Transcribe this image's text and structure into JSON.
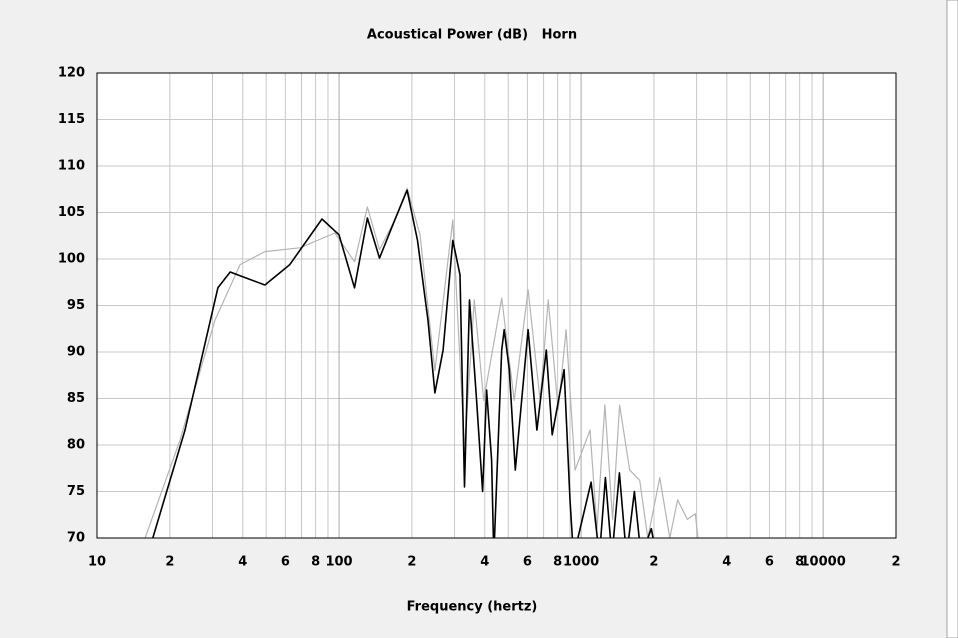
{
  "chart_data": {
    "type": "line",
    "title": "Acoustical Power (dB)   Horn",
    "xlabel": "Frequency (hertz)",
    "log_x": true,
    "grid": true,
    "xlim": [
      10,
      20000
    ],
    "ylim": [
      70,
      120
    ],
    "yticks": [
      70,
      75,
      80,
      85,
      90,
      95,
      100,
      105,
      110,
      115,
      120
    ],
    "xticks": [
      10,
      {
        "value": 20,
        "label": "2"
      },
      {
        "value": 40,
        "label": "4"
      },
      {
        "value": 60,
        "label": "6"
      },
      {
        "value": 80,
        "label": "8"
      },
      100,
      {
        "value": 200,
        "label": "2"
      },
      {
        "value": 400,
        "label": "4"
      },
      {
        "value": 600,
        "label": "6"
      },
      {
        "value": 800,
        "label": "8"
      },
      1000,
      {
        "value": 2000,
        "label": "2"
      },
      {
        "value": 4000,
        "label": "4"
      },
      {
        "value": 6000,
        "label": "6"
      },
      {
        "value": 8000,
        "label": "8"
      },
      10000,
      {
        "value": 20000,
        "label": "2"
      }
    ],
    "xminor_ticks": [
      30,
      50,
      70,
      90,
      300,
      500,
      700,
      900,
      3000,
      5000,
      7000,
      9000
    ],
    "series": [
      {
        "color": "#b4b4b4",
        "x": [
          15.8,
          22,
          30.7,
          39,
          49.4,
          69,
          96,
          116,
          131,
          147,
          170,
          191,
          216,
          249,
          295,
          330,
          362,
          396,
          470,
          529,
          604,
          677,
          731,
          804,
          867,
          945,
          1088,
          1163,
          1254,
          1350,
          1443,
          1588,
          1746,
          1886,
          2115,
          2326,
          2504,
          2750,
          2965,
          3100
        ],
        "values": [
          70,
          80.5,
          93.4,
          99.4,
          100.8,
          101.2,
          102.8,
          99.7,
          105.6,
          101,
          104.2,
          107.6,
          102.6,
          88,
          104.2,
          79.5,
          95.6,
          84.8,
          95.8,
          84.8,
          96.7,
          84.8,
          95.6,
          83.8,
          92.4,
          77.3,
          81.6,
          71,
          84.3,
          72,
          84.3,
          77.3,
          76.2,
          70,
          76.5,
          70,
          74.1,
          72,
          72.6,
          68
        ]
      },
      {
        "color": "#000000",
        "x": [
          17,
          23.1,
          31.6,
          35.5,
          40.9,
          49.4,
          62.6,
          85,
          100,
          115.8,
          131,
          147,
          170,
          191,
          211,
          233,
          249,
          269,
          295,
          316,
          330,
          346,
          370,
          392,
          407,
          427,
          436,
          470,
          481,
          505,
          535,
          604,
          657,
          718,
          760,
          851,
          900,
          930,
          1100,
          1190,
          1260,
          1340,
          1440,
          1540,
          1660,
          1770,
          1950,
          2050,
          2300
        ],
        "values": [
          70,
          81.6,
          96.9,
          98.6,
          98,
          97.2,
          99.4,
          104.3,
          102.6,
          96.9,
          104.4,
          100.1,
          104.2,
          107.4,
          102,
          93.4,
          85.6,
          90.2,
          102,
          98.3,
          75.5,
          95.6,
          84.8,
          75,
          85.9,
          78.4,
          68,
          90.2,
          92.4,
          88.1,
          77.3,
          92.4,
          81.6,
          90.2,
          81.1,
          88.1,
          74.1,
          68,
          76,
          68,
          76.5,
          68,
          77,
          68,
          75,
          68,
          71,
          68,
          68
        ]
      }
    ]
  }
}
